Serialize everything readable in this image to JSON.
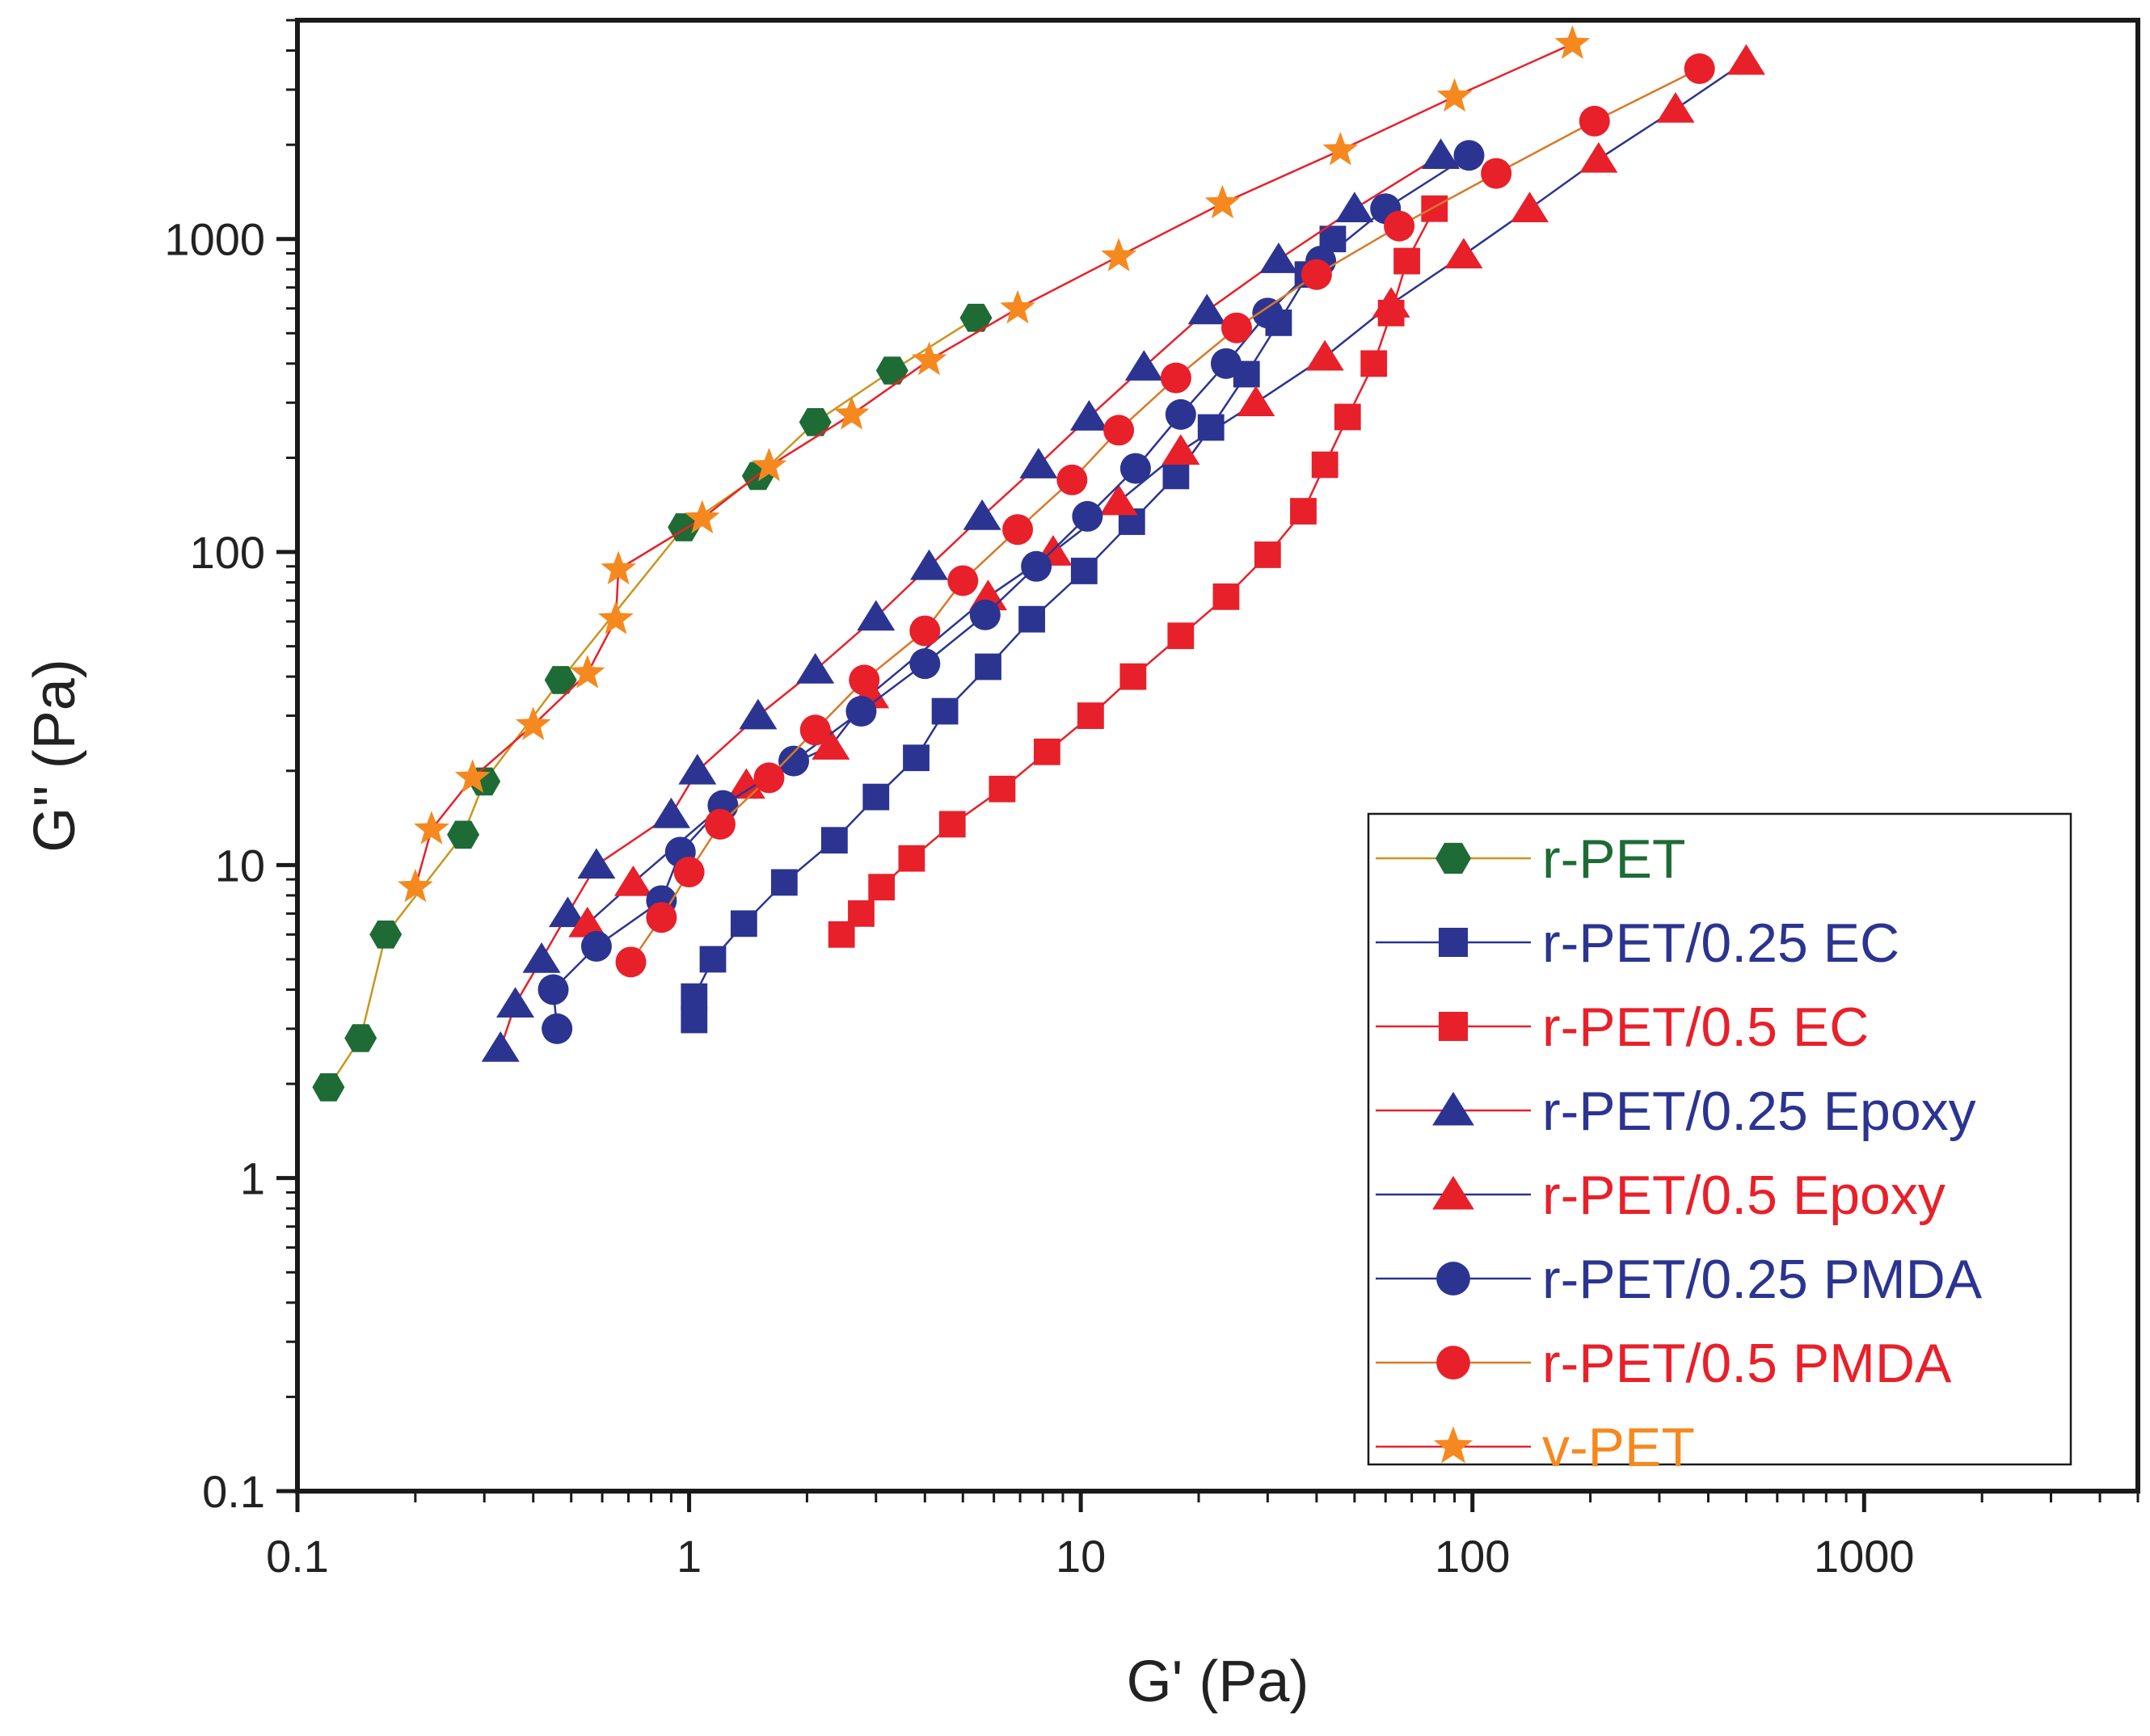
{
  "chart_data": {
    "type": "scatter",
    "title": "",
    "xlabel": "G' (Pa)",
    "ylabel": "G'' (Pa)",
    "xscale": "log",
    "yscale": "log",
    "xlim": [
      0.1,
      5000
    ],
    "ylim": [
      0.1,
      5000
    ],
    "xticks": [
      0.1,
      1,
      10,
      100,
      1000
    ],
    "xtick_labels": [
      "0.1",
      "1",
      "10",
      "100",
      "1000"
    ],
    "yticks": [
      0.1,
      1,
      10,
      100,
      1000
    ],
    "ytick_labels": [
      "0.1",
      "1",
      "10",
      "100",
      "1000"
    ],
    "grid": false,
    "legend_position": "bottom-right",
    "series": [
      {
        "name": "r-PET",
        "marker": "hexagon",
        "marker_color": "#1e6b35",
        "line_color": "#c8961e",
        "label_color": "#1e6b35",
        "x": [
          0.12,
          0.145,
          0.168,
          0.265,
          0.3,
          0.47,
          0.97,
          1.5,
          2.1,
          3.3,
          5.4
        ],
        "y": [
          1.95,
          2.8,
          6.0,
          12.5,
          18.5,
          39,
          120,
          175,
          260,
          380,
          560
        ]
      },
      {
        "name": "r-PET/0.25 EC",
        "marker": "square",
        "marker_color": "#2b3490",
        "line_color": "#2b3490",
        "label_color": "#2b3490",
        "x": [
          1.03,
          1.03,
          1.15,
          1.38,
          1.75,
          2.35,
          3.0,
          3.8,
          4.5,
          5.8,
          7.5,
          10.2,
          13.5,
          17.5,
          21.5,
          26.5,
          32,
          38,
          44
        ],
        "y": [
          3.2,
          3.8,
          5.0,
          6.5,
          8.8,
          12.0,
          16.5,
          22,
          31,
          43,
          61,
          87,
          125,
          175,
          250,
          370,
          540,
          770,
          1000
        ]
      },
      {
        "name": "r-PET/0.5 EC",
        "marker": "square",
        "marker_color": "#e8202a",
        "line_color": "#e8202a",
        "label_color": "#e8202a",
        "x": [
          2.45,
          2.75,
          3.1,
          3.7,
          4.7,
          6.3,
          8.2,
          10.6,
          13.6,
          18.0,
          23.5,
          30,
          37,
          42,
          48,
          56,
          62,
          68,
          80
        ],
        "y": [
          6.0,
          7.0,
          8.5,
          10.5,
          13.5,
          17.5,
          23,
          30,
          40,
          54,
          72,
          98,
          135,
          190,
          270,
          400,
          580,
          850,
          1250
        ]
      },
      {
        "name": "r-PET/0.25 Epoxy",
        "marker": "triangle",
        "marker_color": "#2b3490",
        "line_color": "#e8202a",
        "label_color": "#2b3490",
        "x": [
          0.33,
          0.36,
          0.42,
          0.49,
          0.58,
          0.9,
          1.05,
          1.5,
          2.1,
          3.0,
          4.1,
          5.6,
          7.8,
          10.5,
          14.5,
          21,
          32,
          50,
          83
        ],
        "y": [
          2.6,
          3.6,
          5.0,
          7.0,
          10,
          14.5,
          20,
          30,
          42,
          62,
          90,
          130,
          190,
          270,
          390,
          590,
          860,
          1250,
          1850
        ]
      },
      {
        "name": "r-PET/0.5 Epoxy",
        "marker": "triangle",
        "marker_color": "#e8202a",
        "line_color": "#2b3490",
        "label_color": "#e8202a",
        "x": [
          0.55,
          0.72,
          1.4,
          2.3,
          2.9,
          5.8,
          8.5,
          12.5,
          18,
          28,
          42,
          62,
          95,
          140,
          210,
          330,
          500
        ],
        "y": [
          6.5,
          8.8,
          18,
          24,
          35,
          72,
          100,
          145,
          210,
          300,
          420,
          620,
          890,
          1250,
          1800,
          2600,
          3700
        ]
      },
      {
        "name": "r-PET/0.25 PMDA",
        "marker": "circle",
        "marker_color": "#2b3490",
        "line_color": "#2b3490",
        "label_color": "#2b3490",
        "x": [
          0.46,
          0.45,
          0.58,
          0.85,
          0.95,
          1.22,
          1.85,
          2.75,
          4.0,
          5.7,
          7.7,
          10.4,
          13.8,
          18,
          23.5,
          30,
          41,
          60,
          98
        ],
        "y": [
          3.0,
          4.0,
          5.5,
          7.7,
          11,
          15.5,
          21.5,
          31,
          44,
          63,
          90,
          130,
          185,
          275,
          400,
          580,
          850,
          1250,
          1850
        ]
      },
      {
        "name": "r-PET/0.5 PMDA",
        "marker": "circle",
        "marker_color": "#e8202a",
        "line_color": "#d77a28",
        "label_color": "#e8202a",
        "x": [
          0.71,
          0.85,
          1.0,
          1.2,
          1.6,
          2.1,
          2.8,
          4.0,
          5.0,
          6.9,
          9.5,
          12.5,
          17.5,
          25,
          40,
          65,
          115,
          205,
          380
        ],
        "y": [
          4.9,
          6.8,
          9.5,
          13.5,
          19,
          27,
          39,
          56,
          81,
          118,
          170,
          245,
          360,
          520,
          770,
          1100,
          1620,
          2380,
          3500
        ]
      },
      {
        "name": "v-PET",
        "marker": "star",
        "marker_color": "#f5891f",
        "line_color": "#e8202a",
        "label_color": "#f5891f",
        "x": [
          0.2,
          0.22,
          0.28,
          0.4,
          0.55,
          0.65,
          0.66,
          1.08,
          1.6,
          2.6,
          4.1,
          6.9,
          12.5,
          23,
          46,
          90,
          180
        ],
        "y": [
          8.5,
          13,
          19,
          28,
          41,
          61,
          88,
          128,
          188,
          275,
          410,
          600,
          880,
          1300,
          1920,
          2850,
          4200
        ]
      }
    ]
  }
}
